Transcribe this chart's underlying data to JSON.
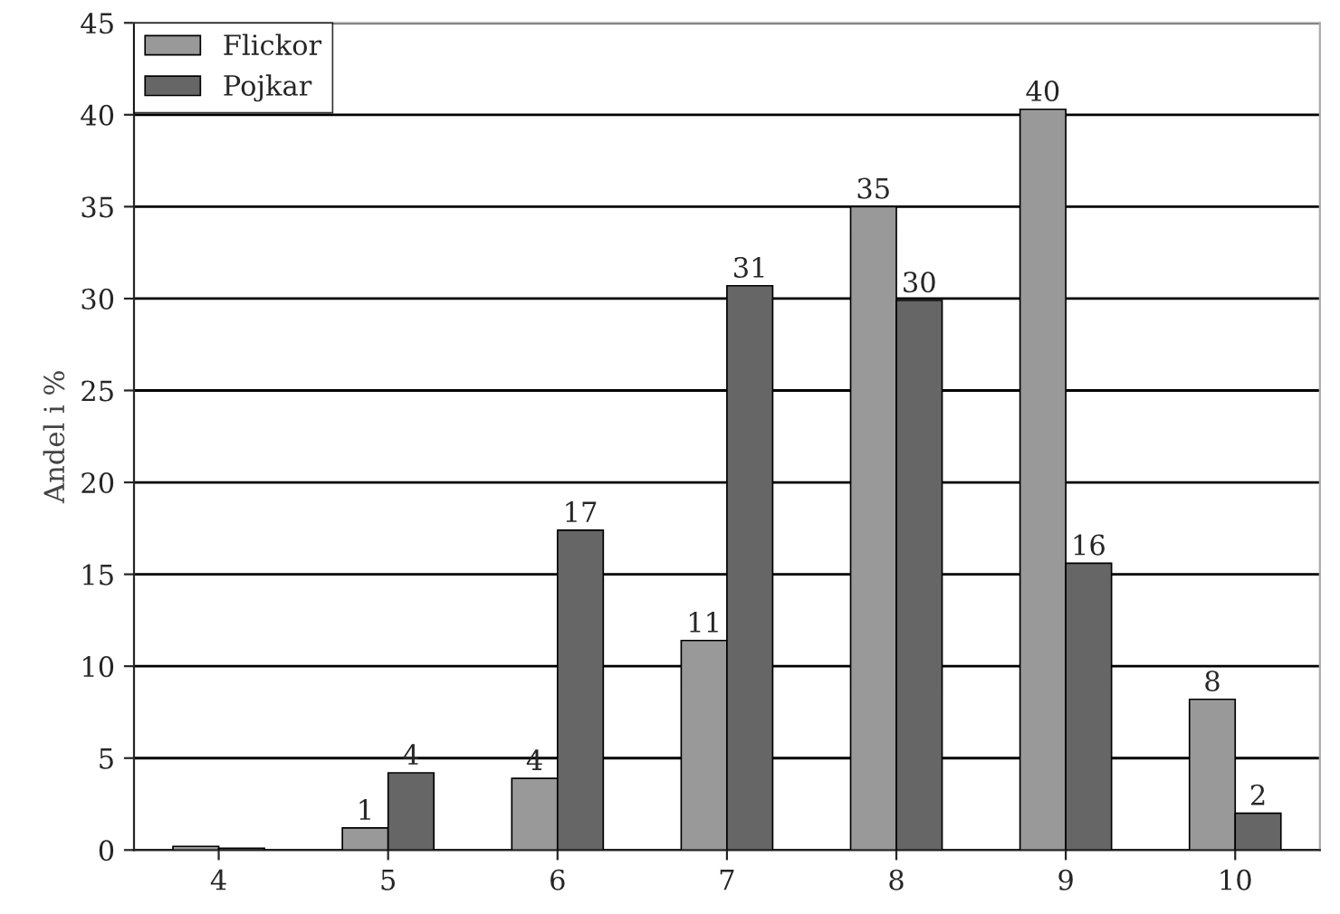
{
  "chart_data": {
    "type": "bar",
    "ylabel": "Andel i %",
    "categories": [
      "4",
      "5",
      "6",
      "7",
      "8",
      "9",
      "10"
    ],
    "series": [
      {
        "name": "Flickor",
        "color": "#999999",
        "values": [
          0.2,
          1.2,
          3.9,
          11.4,
          35.0,
          40.3,
          8.2
        ],
        "value_labels": [
          null,
          "1",
          "4",
          "11",
          "35",
          "40",
          "8"
        ]
      },
      {
        "name": "Pojkar",
        "color": "#666666",
        "values": [
          0.1,
          4.2,
          17.4,
          30.7,
          29.9,
          15.6,
          2.0
        ],
        "value_labels": [
          null,
          "4",
          "17",
          "31",
          "30",
          "16",
          "2"
        ]
      }
    ],
    "ylim": [
      0,
      45
    ],
    "yticks": [
      0,
      5,
      10,
      15,
      20,
      25,
      30,
      35,
      40,
      45
    ],
    "grid": "y",
    "legend": "top left"
  }
}
